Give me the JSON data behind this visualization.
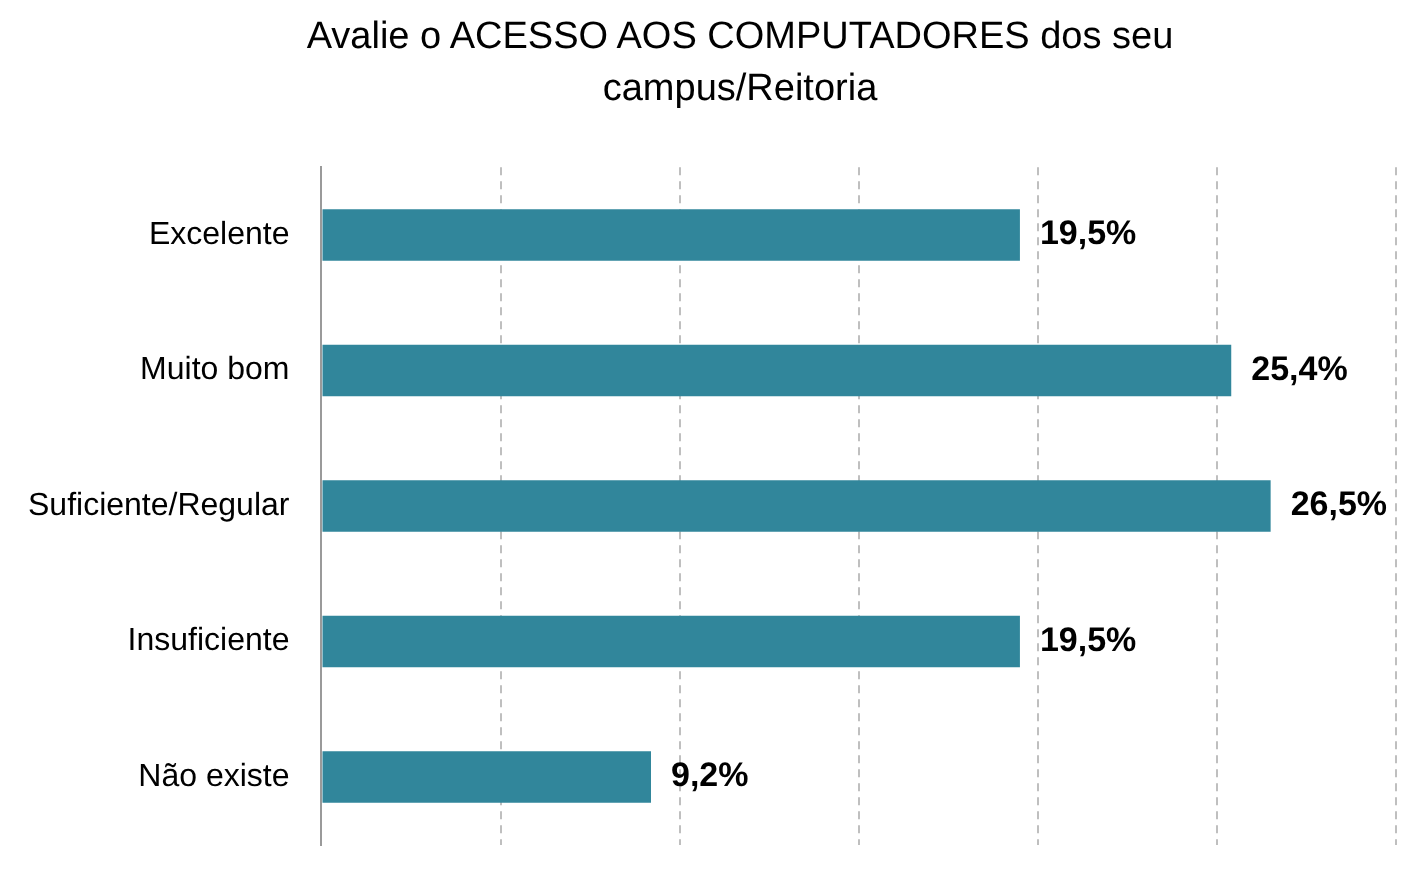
{
  "chart_data": {
    "type": "bar",
    "orientation": "horizontal",
    "title": "Avalie o ACESSO AOS COMPUTADORES dos seu campus/Reitoria",
    "categories": [
      "Excelente",
      "Muito bom",
      "Suficiente/Regular",
      "Insuficiente",
      "Não existe"
    ],
    "values": [
      19.5,
      25.4,
      26.5,
      19.5,
      9.2
    ],
    "value_labels": [
      "19,5%",
      "25,4%",
      "26,5%",
      "19,5%",
      "9,2%"
    ],
    "color": "#31869b",
    "xlim": [
      0,
      30
    ],
    "xticks": [
      {
        "value": 0,
        "label": null
      },
      {
        "value": 5,
        "label": null
      },
      {
        "value": 10,
        "label": null
      },
      {
        "value": 15,
        "label": null
      },
      {
        "value": 20,
        "label": null
      },
      {
        "value": 25,
        "label": null
      },
      {
        "value": 30,
        "label": null
      }
    ],
    "grid": "x",
    "tick_labels": "y",
    "legend": false
  }
}
